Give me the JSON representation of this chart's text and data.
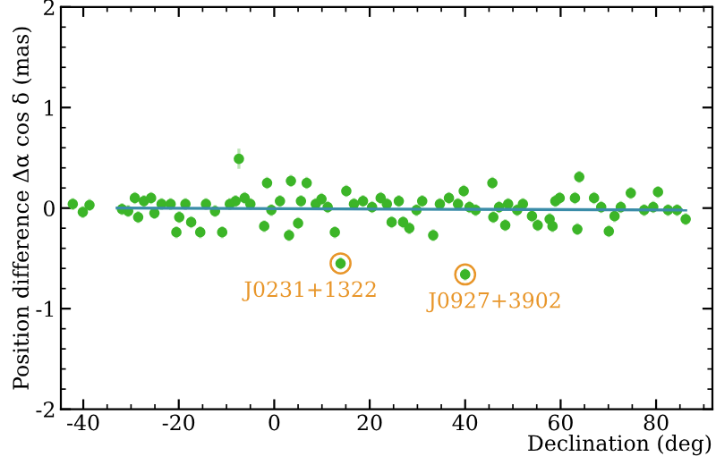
{
  "chart_data": {
    "type": "scatter",
    "xlabel": "Declination (deg)",
    "ylabel": "Position difference Δα cos δ (mas)",
    "xlim": [
      -44.7,
      91.8
    ],
    "ylim": [
      -2,
      2
    ],
    "xticks": [
      -40,
      -20,
      0,
      20,
      40,
      60,
      80
    ],
    "yticks": [
      -2,
      -1,
      0,
      1,
      2
    ],
    "grid": false,
    "series": [
      {
        "marker": "circle",
        "color": "#3cb528",
        "x": [
          -42.2,
          -40.1,
          -38.7,
          -31.9,
          -30.6,
          -29.2,
          -28.5,
          -27.3,
          -25.8,
          -25.1,
          -23.6,
          -21.7,
          -20.5,
          -19.9,
          -18.6,
          -17.4,
          -15.5,
          -14.3,
          -12.4,
          -10.9,
          -9.3,
          -7.4,
          -8.1,
          -6.2,
          -5.0,
          -2.1,
          -1.5,
          -0.6,
          1.2,
          3.1,
          3.5,
          5.0,
          5.6,
          6.8,
          8.7,
          9.9,
          11.2,
          12.7,
          13.9,
          15.1,
          16.7,
          18.6,
          20.5,
          22.3,
          23.6,
          24.6,
          26.1,
          27.0,
          28.3,
          29.8,
          31.0,
          33.3,
          34.7,
          36.6,
          38.5,
          40.0,
          39.7,
          40.9,
          42.2,
          45.7,
          45.9,
          47.1,
          48.4,
          49.0,
          50.9,
          52.1,
          54.0,
          55.2,
          57.7,
          58.3,
          58.9,
          59.8,
          63.0,
          63.5,
          63.9,
          67.0,
          68.5,
          70.1,
          71.3,
          72.6,
          74.7,
          77.5,
          79.4,
          80.4,
          82.5,
          84.4,
          86.2
        ],
        "values": [
          0.04,
          -0.04,
          0.03,
          -0.01,
          -0.03,
          0.1,
          -0.09,
          0.07,
          0.1,
          -0.05,
          0.04,
          0.04,
          -0.24,
          -0.09,
          0.04,
          -0.14,
          -0.24,
          0.04,
          -0.03,
          -0.24,
          0.04,
          0.49,
          0.07,
          0.1,
          0.04,
          -0.18,
          0.25,
          -0.02,
          0.07,
          -0.27,
          0.27,
          -0.15,
          0.07,
          0.25,
          0.04,
          0.09,
          0.01,
          -0.24,
          -0.55,
          0.17,
          0.04,
          0.07,
          0.01,
          0.1,
          0.04,
          -0.14,
          0.07,
          -0.14,
          -0.2,
          -0.02,
          0.07,
          -0.27,
          0.04,
          0.1,
          0.04,
          -0.66,
          0.17,
          0.01,
          -0.02,
          0.25,
          -0.09,
          0.01,
          -0.17,
          0.04,
          -0.02,
          0.04,
          -0.08,
          -0.17,
          -0.11,
          -0.18,
          0.07,
          0.1,
          0.1,
          -0.21,
          0.31,
          0.1,
          0.01,
          -0.23,
          -0.08,
          0.01,
          0.15,
          -0.02,
          0.01,
          0.16,
          -0.02,
          -0.02,
          -0.11
        ],
        "errors": [
          0.06,
          0.06,
          0.06,
          0.06,
          0.06,
          0.06,
          0.06,
          0.06,
          0.06,
          0.06,
          0.06,
          0.06,
          0.06,
          0.06,
          0.06,
          0.06,
          0.06,
          0.06,
          0.06,
          0.06,
          0.06,
          0.1,
          0.06,
          0.06,
          0.06,
          0.06,
          0.06,
          0.06,
          0.06,
          0.06,
          0.06,
          0.06,
          0.06,
          0.06,
          0.06,
          0.06,
          0.06,
          0.06,
          0.06,
          0.06,
          0.06,
          0.06,
          0.06,
          0.06,
          0.06,
          0.06,
          0.06,
          0.06,
          0.06,
          0.06,
          0.06,
          0.06,
          0.06,
          0.06,
          0.06,
          0.06,
          0.06,
          0.06,
          0.06,
          0.06,
          0.06,
          0.06,
          0.06,
          0.06,
          0.06,
          0.06,
          0.06,
          0.06,
          0.06,
          0.06,
          0.06,
          0.06,
          0.06,
          0.06,
          0.06,
          0.06,
          0.06,
          0.06,
          0.06,
          0.06,
          0.06,
          0.06,
          0.06,
          0.06,
          0.06,
          0.06,
          0.06
        ]
      },
      {
        "type": "line",
        "color": "#3a8ca8",
        "x": [
          -32.9,
          86.2
        ],
        "values": [
          0.0,
          -0.02
        ]
      }
    ],
    "annotations": [
      {
        "text": "J0231+1322",
        "x": 13.9,
        "y": -0.55
      },
      {
        "text": "J0927+3902",
        "x": 40.0,
        "y": -0.66
      }
    ]
  }
}
